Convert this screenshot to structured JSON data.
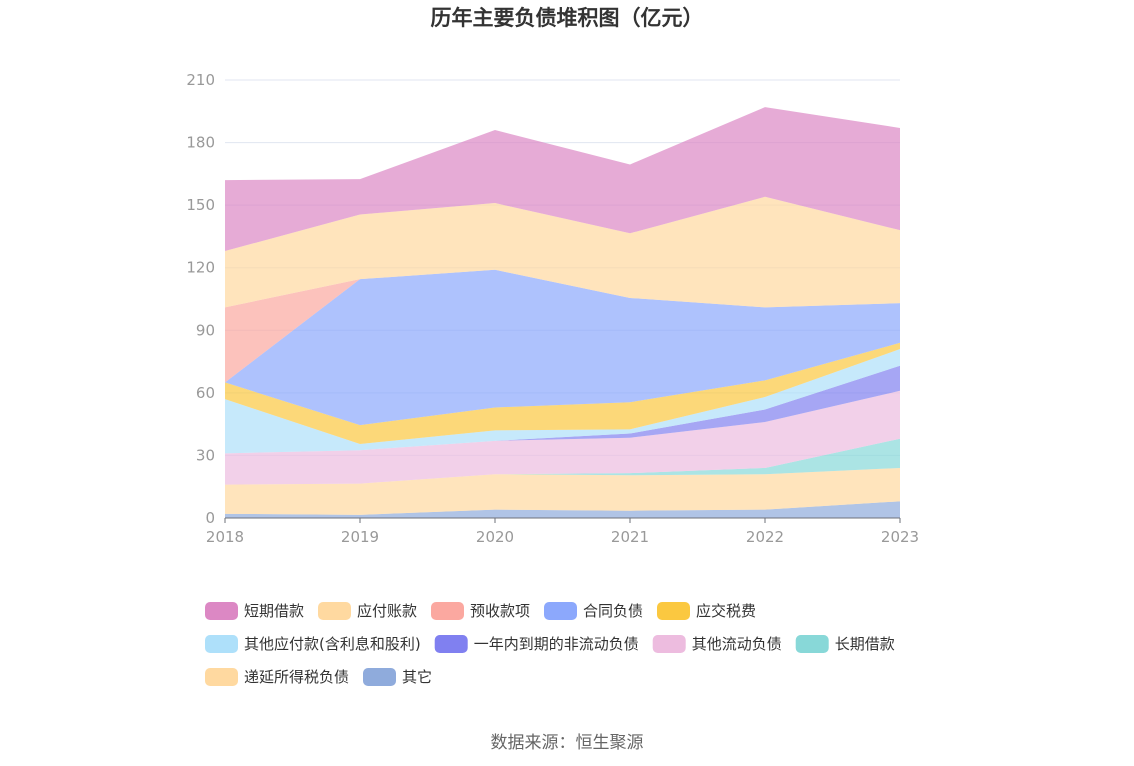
{
  "chart_data": {
    "type": "area",
    "stacked": true,
    "title": "历年主要负债堆积图（亿元）",
    "categories": [
      "2018",
      "2019",
      "2020",
      "2021",
      "2022",
      "2023"
    ],
    "ylim": [
      0,
      210
    ],
    "yticks": [
      0,
      30,
      60,
      90,
      120,
      150,
      180,
      210
    ],
    "grid": true,
    "legend_position": "bottom",
    "series": [
      {
        "name": "其它",
        "color": "#8fabdc",
        "values": [
          2,
          1.5,
          4,
          3.5,
          4,
          8
        ]
      },
      {
        "name": "递延所得税负债",
        "color": "#ffd9a0",
        "values": [
          14,
          15,
          17,
          17,
          17,
          16
        ]
      },
      {
        "name": "长期借款",
        "color": "#88d8d8",
        "values": [
          0,
          0,
          0,
          1,
          3,
          14
        ]
      },
      {
        "name": "其他流动负债",
        "color": "#edbcdf",
        "values": [
          15,
          16,
          16,
          17,
          22,
          23
        ]
      },
      {
        "name": "一年内到期的非流动负债",
        "color": "#8080f0",
        "values": [
          0,
          0,
          0,
          2,
          6,
          12
        ]
      },
      {
        "name": "其他应付款(含利息和股利)",
        "color": "#aee0fa",
        "values": [
          26,
          3,
          5,
          2,
          6,
          8
        ]
      },
      {
        "name": "应交税费",
        "color": "#fbc840",
        "values": [
          8,
          9,
          11,
          13,
          8,
          3
        ]
      },
      {
        "name": "合同负债",
        "color": "#8ca8fc",
        "values": [
          0,
          70,
          66,
          50,
          35,
          19
        ]
      },
      {
        "name": "预收款项",
        "color": "#fba8a0",
        "values": [
          36,
          0,
          0,
          0,
          0,
          0
        ]
      },
      {
        "name": "应付账款",
        "color": "#ffd9a0",
        "values": [
          27,
          31,
          32,
          31,
          53,
          35
        ]
      },
      {
        "name": "短期借款",
        "color": "#dc88c4",
        "values": [
          34,
          17,
          35,
          33,
          43,
          49
        ]
      }
    ],
    "legend": [
      {
        "name": "短期借款",
        "color": "#dc88c4"
      },
      {
        "name": "应付账款",
        "color": "#ffd9a0"
      },
      {
        "name": "预收款项",
        "color": "#fba8a0"
      },
      {
        "name": "合同负债",
        "color": "#8ca8fc"
      },
      {
        "name": "应交税费",
        "color": "#fbc840"
      },
      {
        "name": "其他应付款(含利息和股利)",
        "color": "#aee0fa"
      },
      {
        "name": "一年内到期的非流动负债",
        "color": "#8080f0"
      },
      {
        "name": "其他流动负债",
        "color": "#edbcdf"
      },
      {
        "name": "长期借款",
        "color": "#88d8d8"
      },
      {
        "name": "递延所得税负债",
        "color": "#ffd9a0"
      },
      {
        "name": "其它",
        "color": "#8fabdc"
      }
    ],
    "source": "数据来源：恒生聚源"
  }
}
